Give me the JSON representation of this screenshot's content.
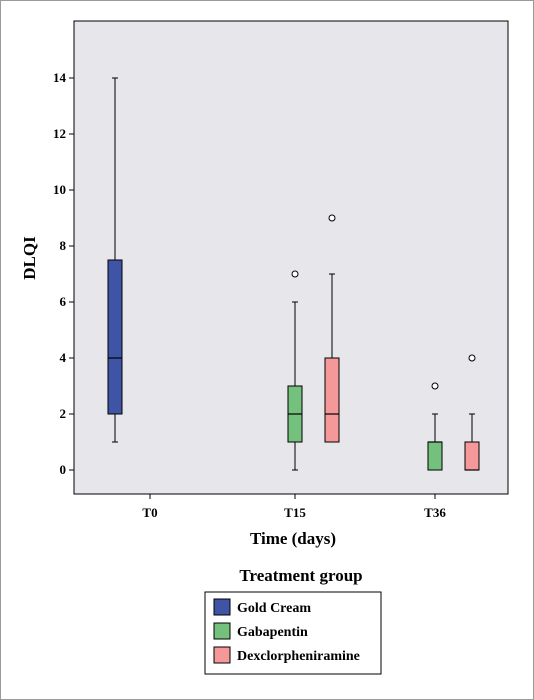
{
  "chart_data": {
    "type": "boxplot",
    "title": "",
    "xlabel": "Time (days)",
    "ylabel": "DLQI",
    "ylim": [
      -0.8,
      15.8
    ],
    "yticks": [
      0,
      2,
      4,
      6,
      8,
      10,
      12,
      14
    ],
    "grid": false,
    "categories": [
      "T0",
      "T15",
      "T36"
    ],
    "legend": {
      "title": "Treatment group",
      "placement": "bottom-center"
    },
    "series": [
      {
        "name": "Gold Cream",
        "color": "#3f54a5",
        "boxes": [
          {
            "category": "T0",
            "min": 1,
            "q1": 2,
            "median": 4,
            "q3": 7.5,
            "max": 14,
            "outliers": []
          }
        ]
      },
      {
        "name": "Gabapentin",
        "color": "#74c17e",
        "boxes": [
          {
            "category": "T15",
            "min": 0,
            "q1": 1,
            "median": 2,
            "q3": 3,
            "max": 6,
            "outliers": [
              7
            ]
          },
          {
            "category": "T36",
            "min": 0,
            "q1": 0,
            "median": 1,
            "q3": 1,
            "max": 2,
            "outliers": [
              3
            ]
          }
        ]
      },
      {
        "name": "Dexclorpheniramine",
        "color": "#f4989a",
        "boxes": [
          {
            "category": "T15",
            "min": 1,
            "q1": 1,
            "median": 2,
            "q3": 4,
            "max": 7,
            "outliers": [
              9
            ]
          },
          {
            "category": "T36",
            "min": 0,
            "q1": 0,
            "median": 0,
            "q3": 1,
            "max": 2,
            "outliers": [
              4
            ]
          }
        ]
      }
    ]
  }
}
